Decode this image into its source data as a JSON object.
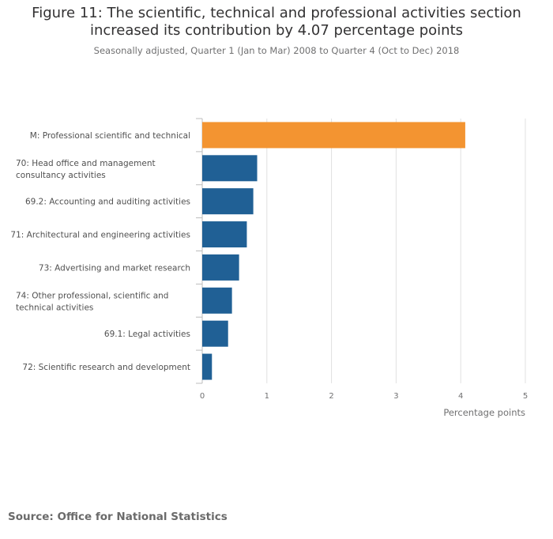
{
  "header": {
    "title_line1": "Figure 11: The scientific, technical and professional activities section",
    "title_line2": "increased its contribution by 4.07 percentage points",
    "subtitle": "Seasonally adjusted, Quarter 1 (Jan to Mar) 2008 to Quarter 4 (Oct to Dec) 2018"
  },
  "source": "Source: Office for National Statistics",
  "chart_data": {
    "type": "bar",
    "orientation": "horizontal",
    "title": "Figure 11: The scientific, technical and professional activities section increased its contribution by 4.07 percentage points",
    "subtitle": "Seasonally adjusted, Quarter 1 (Jan to Mar) 2008 to Quarter 4 (Oct to Dec) 2018",
    "categories": [
      [
        "M: Professional scientific and technical"
      ],
      [
        "70: Head office and management",
        "consultancy activities"
      ],
      [
        "69.2: Accounting and auditing activities"
      ],
      [
        "71: Architectural and engineering activities"
      ],
      [
        "73: Advertising and market research"
      ],
      [
        "74: Other professional, scientific and",
        "technical activities"
      ],
      [
        "69.1: Legal activities"
      ],
      [
        "72: Scientific research and development"
      ]
    ],
    "values": [
      4.07,
      0.85,
      0.79,
      0.69,
      0.57,
      0.46,
      0.4,
      0.15
    ],
    "highlight_index": 0,
    "colors": {
      "highlight": "#f39431",
      "default": "#206095",
      "grid": "#e0e0e0",
      "axis": "#bcbcbc"
    },
    "xlabel": "Percentage points",
    "ylabel": "",
    "xlim": [
      0,
      5
    ],
    "xticks": [
      "0",
      "1",
      "2",
      "3",
      "4",
      "5"
    ],
    "grid": true,
    "legend": "none"
  }
}
